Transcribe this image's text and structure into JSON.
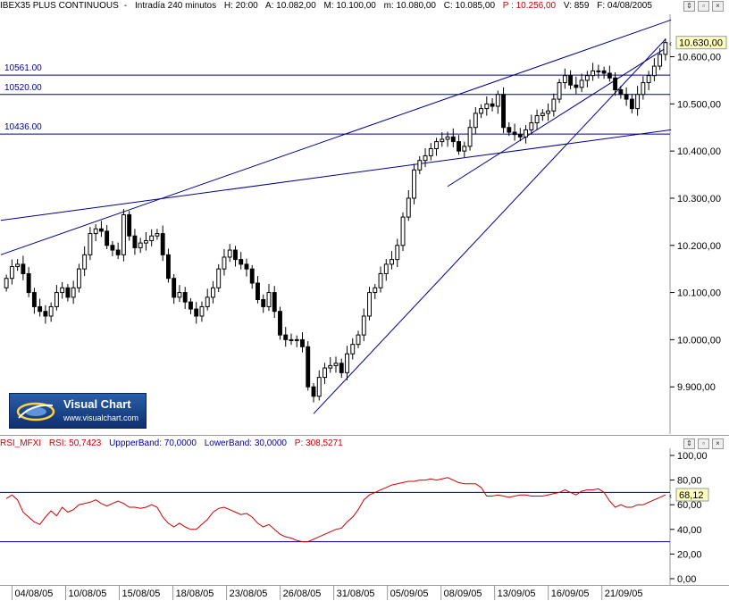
{
  "price_header": {
    "symbol": "IBEX35 PLUS CONTINUOUS",
    "interval": "Intradía 240 minutos",
    "hour": "H: 20:00",
    "open": "A: 10.082,00",
    "max": "M: 10.100,00",
    "min": "m: 10.080,00",
    "close": "C: 10.085,00",
    "prev": "P : 10.256,00",
    "volume": "V: 859",
    "date": "F: 04/08/2005"
  },
  "rsi_header": {
    "name": "RSI_MFXI",
    "rsi": "RSI: 50,7423",
    "upper": "UppperBand: 70,0000",
    "lower": "LowerBand: 30,0000",
    "p": "P: 308,5271"
  },
  "logo": {
    "name": "Visual Chart",
    "url": "www.visualchart.com"
  },
  "colors": {
    "candle": "#000000",
    "bull_body": "#ffffff",
    "bear_body": "#000000",
    "lines": "#00008b",
    "rsi": "#cc0000",
    "price_label": "#ffffc0"
  },
  "chart_data": [
    {
      "type": "candlestick",
      "title": "IBEX35 PLUS CONTINUOUS",
      "x_tick_labels": [
        "04/08/05",
        "10/08/05",
        "15/08/05",
        "18/08/05",
        "23/08/05",
        "26/08/05",
        "31/08/05",
        "05/09/05",
        "08/09/05",
        "13/09/05",
        "16/09/05",
        "21/09/05"
      ],
      "y_tick_labels": [
        "10.600,00",
        "10.500,00",
        "10.400,00",
        "10.300,00",
        "10.200,00",
        "10.100,00",
        "10.000,00",
        "9.900,00"
      ],
      "y_ticks": [
        10600,
        10500,
        10400,
        10300,
        10200,
        10100,
        10000,
        9900
      ],
      "ylim": [
        9800,
        10690
      ],
      "last_price_label": "10.630,00",
      "last_price": 10630,
      "horizontal_levels": [
        {
          "label": "10561.00",
          "value": 10561
        },
        {
          "label": "10520.00",
          "value": 10520
        },
        {
          "label": "10436.00",
          "value": 10436
        }
      ],
      "close": [
        10130,
        10155,
        10160,
        10140,
        10100,
        10070,
        10060,
        10050,
        10070,
        10100,
        10110,
        10090,
        10110,
        10150,
        10180,
        10225,
        10235,
        10230,
        10200,
        10190,
        10180,
        10265,
        10220,
        10195,
        10205,
        10210,
        10220,
        10225,
        10180,
        10130,
        10090,
        10100,
        10080,
        10065,
        10050,
        10070,
        10090,
        10110,
        10150,
        10175,
        10190,
        10170,
        10160,
        10150,
        10120,
        10085,
        10070,
        10100,
        10060,
        10010,
        10000,
        10000,
        10000,
        9985,
        9900,
        9880,
        9920,
        9940,
        9945,
        9950,
        9930,
        9970,
        9990,
        10010,
        10050,
        10100,
        10110,
        10140,
        10160,
        10170,
        10200,
        10260,
        10300,
        10360,
        10380,
        10390,
        10405,
        10420,
        10425,
        10430,
        10420,
        10400,
        10410,
        10450,
        10480,
        10490,
        10500,
        10495,
        10520,
        10450,
        10440,
        10435,
        10430,
        10445,
        10460,
        10475,
        10480,
        10485,
        10510,
        10545,
        10560,
        10540,
        10535,
        10550,
        10560,
        10570,
        10570,
        10565,
        10555,
        10530,
        10520,
        10510,
        10490,
        10520,
        10545,
        10560,
        10580,
        10605,
        10630
      ]
    },
    {
      "type": "line",
      "title": "RSI_MFXI",
      "series_name": "RSI",
      "y_tick_labels": [
        "100,00",
        "80,00",
        "60,00",
        "40,00",
        "20,00",
        "0,00"
      ],
      "y_ticks": [
        100,
        80,
        60,
        40,
        20,
        0
      ],
      "ylim": [
        0,
        100
      ],
      "last_value_label": "68,12",
      "last_value": 68.12,
      "upper_band": 70,
      "lower_band": 30,
      "values": [
        65,
        68,
        64,
        54,
        50,
        46,
        44,
        50,
        55,
        51,
        58,
        54,
        56,
        60,
        61,
        62,
        64,
        61,
        59,
        61,
        63,
        61,
        58,
        58,
        57,
        58,
        60,
        58,
        50,
        45,
        42,
        45,
        42,
        40,
        40,
        44,
        48,
        54,
        57,
        58,
        56,
        54,
        52,
        53,
        50,
        45,
        42,
        44,
        40,
        36,
        34,
        33,
        31,
        30,
        30,
        32,
        34,
        36,
        38,
        40,
        41,
        46,
        50,
        56,
        64,
        68,
        70,
        72,
        74,
        76,
        77,
        78,
        79,
        79,
        80,
        80,
        81,
        80,
        81,
        82,
        80,
        78,
        77,
        77,
        77,
        74,
        67,
        67,
        68,
        67,
        66,
        67,
        68,
        68,
        67,
        67,
        67,
        68,
        69,
        70,
        72,
        70,
        68,
        71,
        72,
        72,
        73,
        70,
        63,
        58,
        60,
        58,
        58,
        60,
        60,
        62,
        64,
        66,
        68
      ]
    }
  ]
}
